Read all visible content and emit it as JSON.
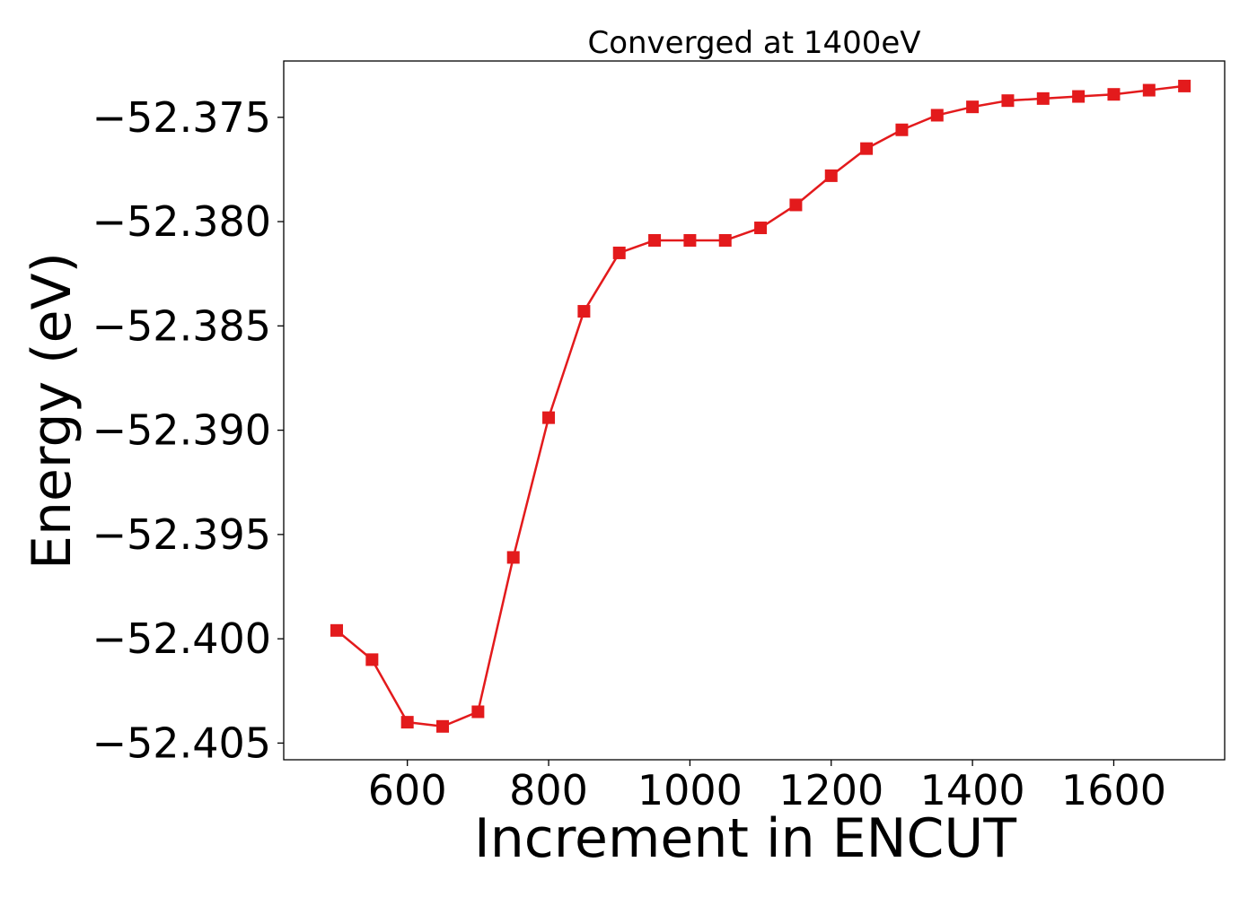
{
  "chart_data": {
    "type": "line",
    "title": "Converged at 1400eV",
    "xlabel": "Increment in ENCUT",
    "ylabel": "Energy (eV)",
    "xlim": [
      425,
      1757
    ],
    "ylim": [
      -52.4058,
      -52.3723
    ],
    "xticks": [
      600,
      800,
      1000,
      1200,
      1400,
      1600
    ],
    "xtick_labels": [
      "600",
      "800",
      "1000",
      "1200",
      "1400",
      "1600"
    ],
    "yticks": [
      -52.375,
      -52.38,
      -52.385,
      -52.39,
      -52.395,
      -52.4,
      -52.405
    ],
    "ytick_labels": [
      "−52.375",
      "−52.380",
      "−52.385",
      "−52.390",
      "−52.395",
      "−52.400",
      "−52.405"
    ],
    "grid": false,
    "marker": "square",
    "series": [
      {
        "color": "#e31a1c",
        "x": [
          500,
          550,
          600,
          650,
          700,
          750,
          800,
          850,
          900,
          950,
          1000,
          1050,
          1100,
          1150,
          1200,
          1250,
          1300,
          1350,
          1400,
          1450,
          1500,
          1550,
          1600,
          1650,
          1700
        ],
        "y": [
          -52.3996,
          -52.401,
          -52.404,
          -52.4042,
          -52.4035,
          -52.3961,
          -52.3894,
          -52.3843,
          -52.3815,
          -52.3809,
          -52.3809,
          -52.3809,
          -52.3803,
          -52.3792,
          -52.3778,
          -52.3765,
          -52.3756,
          -52.3749,
          -52.3745,
          -52.3742,
          -52.3741,
          -52.374,
          -52.3739,
          -52.3737,
          -52.3735
        ]
      }
    ]
  }
}
